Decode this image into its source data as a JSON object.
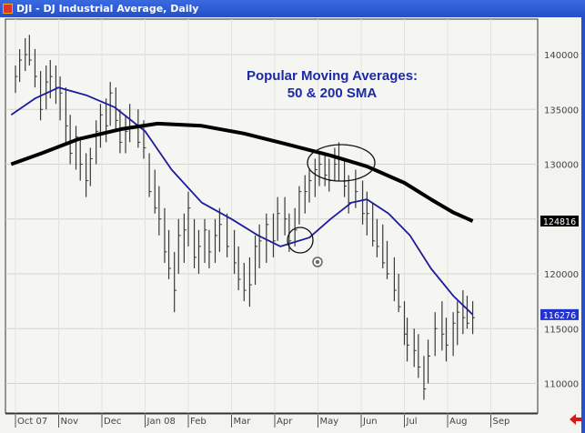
{
  "window": {
    "title": "DJI - DJ Industrial Average, Daily"
  },
  "chart_data": {
    "type": "ohlc-bar-with-lines",
    "annotation": [
      "Popular Moving Averages:",
      "50 & 200 SMA"
    ],
    "y_ticks": [
      110000,
      115000,
      120000,
      125000,
      130000,
      135000,
      140000
    ],
    "y_tick_labels": [
      "110000",
      "115000",
      "120000",
      "",
      "130000",
      "135000",
      "140000"
    ],
    "ylim": [
      106500,
      143500
    ],
    "x_ticks": [
      {
        "label": "Oct 07",
        "date": "2007-10-01"
      },
      {
        "label": "Nov",
        "date": "2007-11-01"
      },
      {
        "label": "Dec",
        "date": "2007-12-01"
      },
      {
        "label": "Jan 08",
        "date": "2008-01-01"
      },
      {
        "label": "Feb",
        "date": "2008-02-01"
      },
      {
        "label": "Mar",
        "date": "2008-03-01"
      },
      {
        "label": "Apr",
        "date": "2008-04-01"
      },
      {
        "label": "May",
        "date": "2008-05-01"
      },
      {
        "label": "Jun",
        "date": "2008-06-01"
      },
      {
        "label": "Jul",
        "date": "2008-07-01"
      },
      {
        "label": "Aug",
        "date": "2008-08-01"
      },
      {
        "label": "Sep",
        "date": "2008-09-01"
      }
    ],
    "grid": true,
    "colors": {
      "bars": "#3a3a3a",
      "sma50": "#1c1c9c",
      "sma200": "#000000",
      "background": "#f3f3ef"
    },
    "last_values": {
      "sma200": "124816",
      "sma50": "116276"
    },
    "price_bars_columns": [
      "date",
      "low",
      "high",
      "close"
    ],
    "price_bars": [
      [
        "2007-10-01",
        136500,
        139000,
        138000
      ],
      [
        "2007-10-04",
        137500,
        140500,
        139500
      ],
      [
        "2007-10-08",
        138500,
        141500,
        140000
      ],
      [
        "2007-10-11",
        139000,
        141800,
        139500
      ],
      [
        "2007-10-15",
        137000,
        140500,
        138000
      ],
      [
        "2007-10-19",
        134000,
        138500,
        135000
      ],
      [
        "2007-10-23",
        135000,
        139000,
        137500
      ],
      [
        "2007-10-26",
        136000,
        139500,
        138000
      ],
      [
        "2007-10-30",
        135500,
        139000,
        137000
      ],
      [
        "2007-11-02",
        134000,
        138000,
        136500
      ],
      [
        "2007-11-06",
        132000,
        137000,
        133500
      ],
      [
        "2007-11-09",
        130000,
        134500,
        131000
      ],
      [
        "2007-11-13",
        129500,
        133500,
        132500
      ],
      [
        "2007-11-16",
        128500,
        132500,
        130000
      ],
      [
        "2007-11-20",
        127000,
        131000,
        128500
      ],
      [
        "2007-11-23",
        128000,
        131500,
        130500
      ],
      [
        "2007-11-27",
        130000,
        134000,
        133000
      ],
      [
        "2007-11-30",
        131500,
        135500,
        134500
      ],
      [
        "2007-12-04",
        132000,
        136000,
        133500
      ],
      [
        "2007-12-07",
        133500,
        137500,
        136500
      ],
      [
        "2007-12-11",
        133000,
        137000,
        134000
      ],
      [
        "2007-12-14",
        131000,
        135000,
        132000
      ],
      [
        "2007-12-18",
        131000,
        134500,
        133000
      ],
      [
        "2007-12-21",
        132000,
        135500,
        134000
      ],
      [
        "2007-12-27",
        131500,
        135000,
        132000
      ],
      [
        "2007-12-31",
        130500,
        134000,
        131500
      ],
      [
        "2008-01-04",
        127000,
        131000,
        127500
      ],
      [
        "2008-01-08",
        125500,
        129500,
        126000
      ],
      [
        "2008-01-11",
        123500,
        128000,
        125000
      ],
      [
        "2008-01-15",
        121000,
        126000,
        122000
      ],
      [
        "2008-01-18",
        119500,
        124000,
        120500
      ],
      [
        "2008-01-22",
        116500,
        122000,
        118500
      ],
      [
        "2008-01-25",
        120000,
        125000,
        123500
      ],
      [
        "2008-01-29",
        121000,
        125500,
        124000
      ],
      [
        "2008-02-01",
        122500,
        127500,
        126000
      ],
      [
        "2008-02-05",
        120500,
        125000,
        121500
      ],
      [
        "2008-02-08",
        120000,
        124000,
        122500
      ],
      [
        "2008-02-12",
        121000,
        125000,
        124000
      ],
      [
        "2008-02-15",
        120500,
        124000,
        122000
      ],
      [
        "2008-02-19",
        121000,
        125000,
        123500
      ],
      [
        "2008-02-22",
        122000,
        126000,
        124500
      ],
      [
        "2008-02-27",
        121500,
        125500,
        122500
      ],
      [
        "2008-03-03",
        120000,
        124000,
        121000
      ],
      [
        "2008-03-06",
        118500,
        122500,
        119500
      ],
      [
        "2008-03-10",
        117500,
        121000,
        118500
      ],
      [
        "2008-03-14",
        117000,
        121500,
        119000
      ],
      [
        "2008-03-18",
        119000,
        123500,
        122500
      ],
      [
        "2008-03-21",
        120500,
        124500,
        123000
      ],
      [
        "2008-03-26",
        121000,
        125500,
        124500
      ],
      [
        "2008-03-31",
        121500,
        125500,
        123000
      ],
      [
        "2008-04-03",
        123000,
        127000,
        125500
      ],
      [
        "2008-04-08",
        123500,
        127000,
        125000
      ],
      [
        "2008-04-11",
        122000,
        125500,
        123000
      ],
      [
        "2008-04-15",
        122500,
        126000,
        124000
      ],
      [
        "2008-04-18",
        124500,
        128000,
        127500
      ],
      [
        "2008-04-22",
        125500,
        129000,
        127500
      ],
      [
        "2008-04-25",
        126500,
        129500,
        128500
      ],
      [
        "2008-04-29",
        127000,
        130500,
        129500
      ],
      [
        "2008-05-02",
        128000,
        131000,
        130000
      ],
      [
        "2008-05-06",
        128000,
        131000,
        129000
      ],
      [
        "2008-05-09",
        127500,
        130500,
        128500
      ],
      [
        "2008-05-13",
        128500,
        131500,
        130000
      ],
      [
        "2008-05-16",
        128500,
        132000,
        130500
      ],
      [
        "2008-05-20",
        127000,
        130500,
        128000
      ],
      [
        "2008-05-23",
        125500,
        129000,
        126500
      ],
      [
        "2008-05-28",
        126000,
        129500,
        127500
      ],
      [
        "2008-06-02",
        124500,
        128500,
        125500
      ],
      [
        "2008-06-05",
        123500,
        127500,
        125500
      ],
      [
        "2008-06-09",
        122500,
        126500,
        123000
      ],
      [
        "2008-06-12",
        121500,
        125000,
        122500
      ],
      [
        "2008-06-16",
        120500,
        124500,
        121000
      ],
      [
        "2008-06-19",
        119500,
        123000,
        120000
      ],
      [
        "2008-06-24",
        117500,
        121500,
        118500
      ],
      [
        "2008-06-27",
        116500,
        120000,
        117000
      ],
      [
        "2008-07-01",
        113500,
        117500,
        114500
      ],
      [
        "2008-07-03",
        112000,
        116000,
        113500
      ],
      [
        "2008-07-08",
        111500,
        115000,
        113000
      ],
      [
        "2008-07-11",
        110500,
        114500,
        111500
      ],
      [
        "2008-07-15",
        108500,
        112500,
        109500
      ],
      [
        "2008-07-18",
        110000,
        114000,
        112500
      ],
      [
        "2008-07-23",
        112500,
        116500,
        115000
      ],
      [
        "2008-07-28",
        113000,
        117500,
        114500
      ],
      [
        "2008-07-31",
        112000,
        116000,
        113500
      ],
      [
        "2008-08-05",
        112500,
        116500,
        115500
      ],
      [
        "2008-08-08",
        113500,
        117500,
        116500
      ],
      [
        "2008-08-12",
        114500,
        118500,
        116000
      ],
      [
        "2008-08-15",
        115000,
        118000,
        115500
      ],
      [
        "2008-08-19",
        114500,
        117500,
        116000
      ]
    ],
    "series": [
      {
        "key": "sma50",
        "points": [
          [
            "2007-09-28",
            134500
          ],
          [
            "2007-10-15",
            136000
          ],
          [
            "2007-11-01",
            137000
          ],
          [
            "2007-11-20",
            136300
          ],
          [
            "2007-12-10",
            135200
          ],
          [
            "2008-01-01",
            133000
          ],
          [
            "2008-01-20",
            129500
          ],
          [
            "2008-02-10",
            126500
          ],
          [
            "2008-03-01",
            125000
          ],
          [
            "2008-03-20",
            123500
          ],
          [
            "2008-04-05",
            122500
          ],
          [
            "2008-04-25",
            123300
          ],
          [
            "2008-05-10",
            125000
          ],
          [
            "2008-05-25",
            126500
          ],
          [
            "2008-06-05",
            126800
          ],
          [
            "2008-06-20",
            125500
          ],
          [
            "2008-07-05",
            123500
          ],
          [
            "2008-07-20",
            120500
          ],
          [
            "2008-08-05",
            118000
          ],
          [
            "2008-08-19",
            116276
          ]
        ]
      },
      {
        "key": "sma200",
        "points": [
          [
            "2007-09-28",
            130000
          ],
          [
            "2007-10-20",
            131000
          ],
          [
            "2007-11-15",
            132300
          ],
          [
            "2007-12-15",
            133200
          ],
          [
            "2008-01-10",
            133700
          ],
          [
            "2008-02-10",
            133500
          ],
          [
            "2008-03-10",
            132800
          ],
          [
            "2008-04-10",
            131800
          ],
          [
            "2008-05-10",
            130800
          ],
          [
            "2008-06-05",
            129800
          ],
          [
            "2008-07-01",
            128300
          ],
          [
            "2008-07-20",
            126800
          ],
          [
            "2008-08-05",
            125600
          ],
          [
            "2008-08-19",
            124816
          ]
        ]
      }
    ]
  }
}
